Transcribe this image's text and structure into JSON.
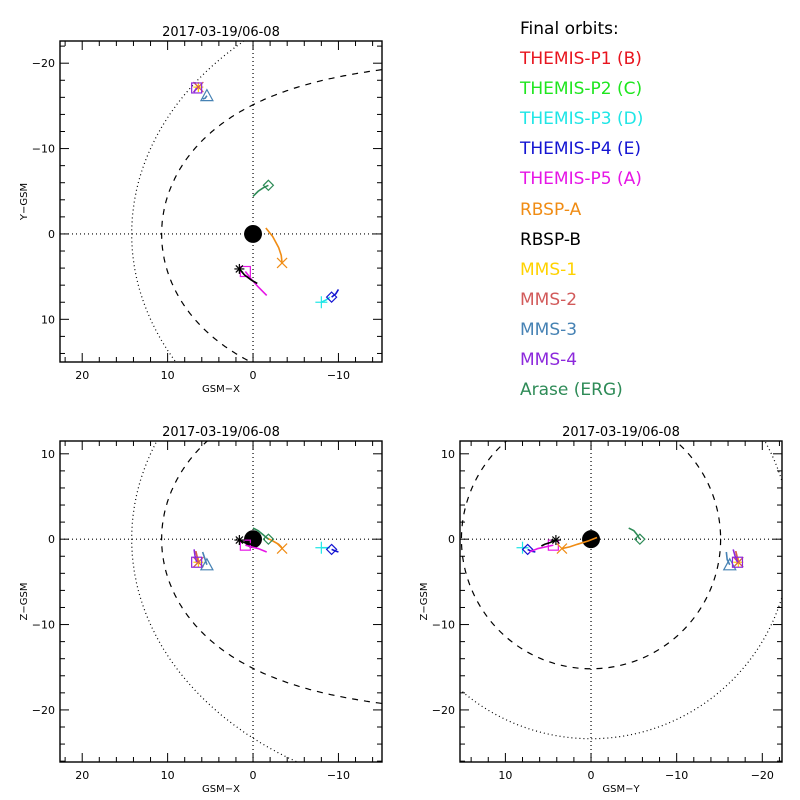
{
  "chart_data": {
    "type": "scatter",
    "title": "Final orbits:",
    "legend_placement": "top-right",
    "series": [
      {
        "name": "THEMIS-P1 (B)",
        "color": "#e8141e",
        "marker": "square-plus",
        "visible": false
      },
      {
        "name": "THEMIS-P2 (C)",
        "color": "#1ee61e",
        "marker": "diamond",
        "visible": false
      },
      {
        "name": "THEMIS-P3 (D)",
        "color": "#1ee6e6",
        "marker": "plus",
        "final": {
          "x": -8.0,
          "y": 8.0,
          "z": -1.0
        },
        "trail": [
          {
            "x": -8.0,
            "y": 8.0,
            "z": -1.0
          },
          {
            "x": -8.6,
            "y": 7.7,
            "z": -1.0
          },
          {
            "x": -9.0,
            "y": 7.4,
            "z": -1.0
          }
        ]
      },
      {
        "name": "THEMIS-P4 (E)",
        "color": "#1414d2",
        "marker": "diamond",
        "final": {
          "x": -9.2,
          "y": 7.4,
          "z": -1.2
        },
        "trail": [
          {
            "x": -9.2,
            "y": 7.4,
            "z": -1.2
          },
          {
            "x": -9.7,
            "y": 7.0,
            "z": -1.4
          },
          {
            "x": -10.0,
            "y": 6.5,
            "z": -1.5
          }
        ]
      },
      {
        "name": "THEMIS-P5 (A)",
        "color": "#e614e6",
        "marker": "square",
        "final": {
          "x": 0.9,
          "y": 4.4,
          "z": -0.7
        },
        "trail": [
          {
            "x": 0.9,
            "y": 4.4,
            "z": -0.7
          },
          {
            "x": 0.2,
            "y": 5.3,
            "z": -0.9
          },
          {
            "x": -0.6,
            "y": 6.2,
            "z": -1.1
          },
          {
            "x": -1.6,
            "y": 7.2,
            "z": -1.5
          }
        ]
      },
      {
        "name": "RBSP-A",
        "color": "#f08c14",
        "marker": "x",
        "final": {
          "x": -3.4,
          "y": 3.4,
          "z": -1.1
        },
        "trail": [
          {
            "x": -1.5,
            "y": -0.7,
            "z": 0.2
          },
          {
            "x": -2.3,
            "y": 0.3,
            "z": -0.2
          },
          {
            "x": -3.0,
            "y": 1.6,
            "z": -0.6
          },
          {
            "x": -3.3,
            "y": 2.5,
            "z": -0.9
          },
          {
            "x": -3.4,
            "y": 3.4,
            "z": -1.1
          }
        ]
      },
      {
        "name": "RBSP-B",
        "color": "#000000",
        "marker": "asterisk",
        "final": {
          "x": 1.6,
          "y": 4.1,
          "z": -0.1
        },
        "trail": [
          {
            "x": 1.6,
            "y": 4.1,
            "z": -0.1
          },
          {
            "x": 1.0,
            "y": 4.8,
            "z": -0.4
          },
          {
            "x": 0.2,
            "y": 5.4,
            "z": -0.6
          },
          {
            "x": -0.5,
            "y": 5.8,
            "z": -0.8
          }
        ]
      },
      {
        "name": "MMS-1",
        "color": "#ffd200",
        "marker": "asterisk",
        "final": {
          "x": 6.4,
          "y": -17.2,
          "z": -2.7
        },
        "trail": [
          {
            "x": 6.4,
            "y": -17.2,
            "z": -2.7
          },
          {
            "x": 6.7,
            "y": -16.9,
            "z": -1.4
          }
        ]
      },
      {
        "name": "MMS-2",
        "color": "#d25a5a",
        "marker": "x",
        "final": {
          "x": 6.4,
          "y": -17.2,
          "z": -2.7
        },
        "trail": [
          {
            "x": 6.4,
            "y": -17.2,
            "z": -2.7
          },
          {
            "x": 6.7,
            "y": -16.9,
            "z": -1.4
          }
        ]
      },
      {
        "name": "MMS-3",
        "color": "#4682b4",
        "marker": "triangle",
        "final": {
          "x": 5.4,
          "y": -16.2,
          "z": -3.0
        },
        "trail": [
          {
            "x": 5.4,
            "y": -16.2,
            "z": -3.0
          },
          {
            "x": 5.6,
            "y": -15.9,
            "z": -2.4
          },
          {
            "x": 5.9,
            "y": -15.8,
            "z": -1.5
          }
        ]
      },
      {
        "name": "MMS-4",
        "color": "#8c28dc",
        "marker": "square",
        "final": {
          "x": 6.6,
          "y": -17.1,
          "z": -2.7
        },
        "trail": [
          {
            "x": 6.6,
            "y": -17.1,
            "z": -2.7
          },
          {
            "x": 6.8,
            "y": -16.8,
            "z": -1.9
          },
          {
            "x": 6.9,
            "y": -16.6,
            "z": -1.2
          }
        ]
      },
      {
        "name": "Arase (ERG)",
        "color": "#2e8b57",
        "marker": "diamond",
        "final": {
          "x": -1.8,
          "y": -5.7,
          "z": 0.0
        },
        "trail": [
          {
            "x": 0.0,
            "y": -4.4,
            "z": 1.3
          },
          {
            "x": -0.6,
            "y": -5.0,
            "z": 1.0
          },
          {
            "x": -1.2,
            "y": -5.4,
            "z": 0.5
          },
          {
            "x": -1.8,
            "y": -5.7,
            "z": 0.0
          }
        ]
      }
    ],
    "panels": [
      {
        "id": "xy",
        "title": "2017-03-19/06-08",
        "xlabel": "GSM-X",
        "ylabel": "Y-GSM",
        "h": "x",
        "v": "y",
        "hlim": [
          22.6,
          -15.1
        ],
        "vlim": [
          -22.6,
          15.0
        ],
        "hticks": [
          20,
          10,
          0,
          -10
        ],
        "vticks": [
          -20,
          -10,
          0,
          10
        ],
        "vinverted": true,
        "hticklabels": [
          "20",
          "10",
          "0",
          "-10"
        ],
        "vticklabels": [
          "-20",
          "-10",
          "0",
          "10"
        ]
      },
      {
        "id": "xz",
        "title": "2017-03-19/06-08",
        "xlabel": "GSM-X",
        "ylabel": "Z-GSM",
        "h": "x",
        "v": "z",
        "hlim": [
          22.6,
          -15.1
        ],
        "vlim": [
          11.5,
          -26.1
        ],
        "hticks": [
          20,
          10,
          0,
          -10
        ],
        "vticks": [
          10,
          0,
          -10,
          -20
        ],
        "vinverted": false,
        "hticklabels": [
          "20",
          "10",
          "0",
          "-10"
        ],
        "vticklabels": [
          "10",
          "0",
          "-10",
          "-20"
        ]
      },
      {
        "id": "yz",
        "title": "2017-03-19/06-08",
        "xlabel": "GSM-Y",
        "ylabel": "Z-GSM",
        "h": "y",
        "v": "z",
        "hlim": [
          15.3,
          -22.3
        ],
        "vlim": [
          11.5,
          -26.1
        ],
        "hticks": [
          10,
          0,
          -10,
          -20
        ],
        "vticks": [
          10,
          0,
          -10,
          -20
        ],
        "vinverted": false,
        "hticklabels": [
          "10",
          "0",
          "-10",
          "-20"
        ],
        "vticklabels": [
          "10",
          "0",
          "-10",
          "-20"
        ]
      }
    ],
    "boundaries": {
      "magnetopause": {
        "style": "dashed",
        "r0": 10.7,
        "alpha": 0.5
      },
      "bow_shock": {
        "style": "dotted",
        "L": 23.3,
        "e": 0.64
      }
    },
    "earth_radius": 1.0
  }
}
